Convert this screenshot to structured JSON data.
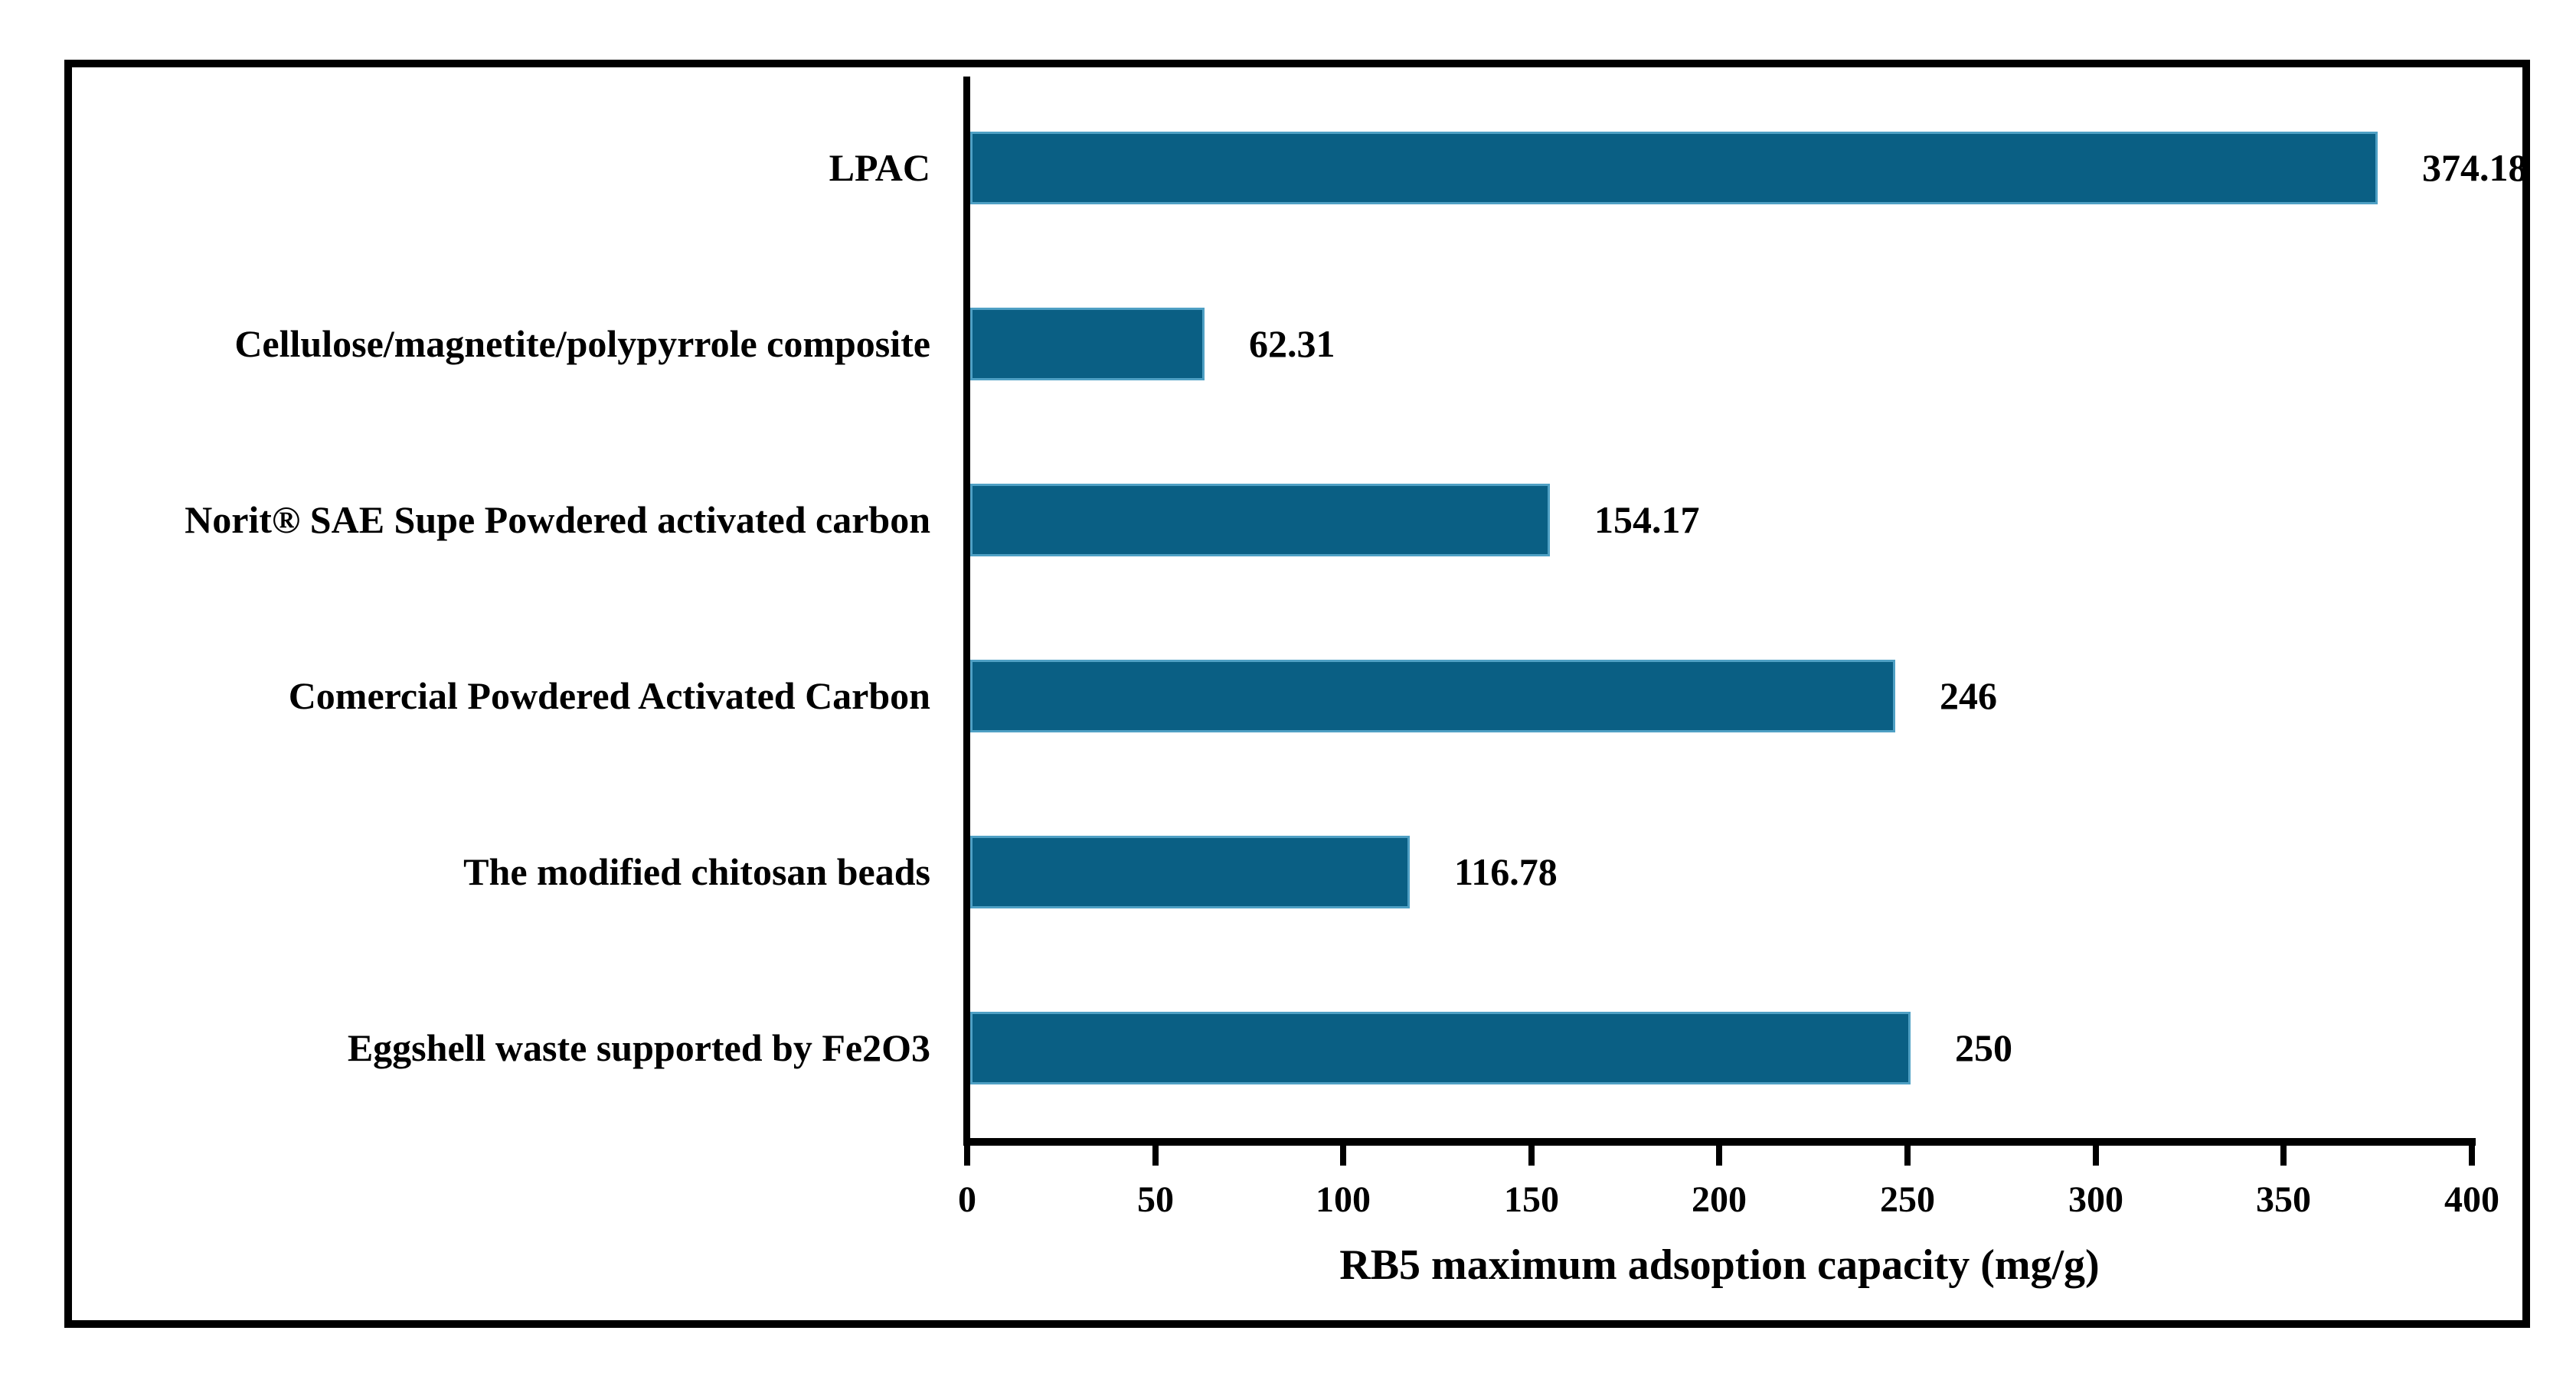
{
  "chart_data": {
    "type": "bar",
    "orientation": "horizontal",
    "categories": [
      "LPAC",
      "Cellulose/magnetite/polypyrrole composite",
      "Norit® SAE Supe Powdered activated carbon",
      "Comercial Powdered Activated Carbon",
      "The modified chitosan beads",
      "Eggshell waste supported by Fe2O3"
    ],
    "values": [
      374.18,
      62.31,
      154.17,
      246,
      116.78,
      250
    ],
    "value_labels": [
      "374.18",
      "62.31",
      "154.17",
      "246",
      "116.78",
      "250"
    ],
    "xlabel": "RB5 maximum adsoption capacity (mg/g)",
    "ylabel": "",
    "xlim": [
      0,
      400
    ],
    "x_ticks": [
      0,
      50,
      100,
      150,
      200,
      250,
      300,
      350,
      400
    ],
    "grid": false,
    "legend": "none",
    "colors": {
      "bar_fill": "#0A5F84",
      "bar_border": "#4FA0C4",
      "axis": "#000000",
      "text": "#000000",
      "frame_border": "#000000",
      "background": "#ffffff"
    }
  }
}
